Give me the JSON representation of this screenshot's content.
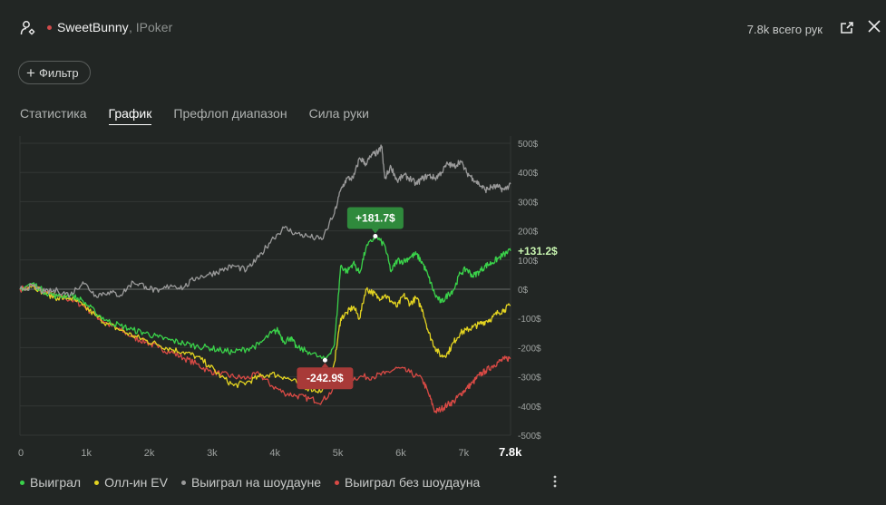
{
  "header": {
    "player_name": "SweetBunny",
    "site": ", IPoker",
    "hands_count": "7.8k всего рук",
    "status_color": "#d24b4b",
    "icons": [
      "user-settings-icon",
      "export-icon",
      "close-icon"
    ]
  },
  "filter": {
    "label": "Фильтр"
  },
  "tabs": [
    {
      "label": "Статистика",
      "active": false
    },
    {
      "label": "График",
      "active": true
    },
    {
      "label": "Префлоп диапазон",
      "active": false
    },
    {
      "label": "Сила руки",
      "active": false
    }
  ],
  "legend": [
    {
      "label": "Выиграл",
      "color": "#3ad24a"
    },
    {
      "label": "Олл-ин EV",
      "color": "#e3d321"
    },
    {
      "label": "Выиграл на шоудауне",
      "color": "#9a9a9a"
    },
    {
      "label": "Выиграл без шоудауна",
      "color": "#d94a45"
    }
  ],
  "chart_data": {
    "type": "line",
    "x_ticks": [
      "0",
      "1k",
      "2k",
      "3k",
      "4k",
      "5k",
      "6k",
      "7k",
      "7.8k"
    ],
    "y_ticks": [
      "500$",
      "400$",
      "300$",
      "200$",
      "100$",
      "0$",
      "-100$",
      "-200$",
      "-300$",
      "-400$",
      "-500$"
    ],
    "xlim": [
      0,
      7800
    ],
    "ylim": [
      -500,
      500
    ],
    "grid": true,
    "legend_position": "bottom-left",
    "annotations": [
      {
        "text": "+181.7$",
        "x": 5650,
        "y": 181.7,
        "color": "#2f8a3c"
      },
      {
        "text": "-242.9$",
        "x": 4850,
        "y": -242.9,
        "color": "#a83a38"
      }
    ],
    "end_label": {
      "text": "+131.2$",
      "color": "#c8f5b0"
    },
    "series": [
      {
        "name": "Выиграл",
        "color": "#3ad24a",
        "points": [
          [
            0,
            0
          ],
          [
            200,
            20
          ],
          [
            400,
            -10
          ],
          [
            600,
            -25
          ],
          [
            800,
            -20
          ],
          [
            1000,
            -40
          ],
          [
            1200,
            -80
          ],
          [
            1400,
            -110
          ],
          [
            1600,
            -125
          ],
          [
            1800,
            -140
          ],
          [
            2000,
            -150
          ],
          [
            2200,
            -165
          ],
          [
            2400,
            -175
          ],
          [
            2600,
            -185
          ],
          [
            2800,
            -195
          ],
          [
            3000,
            -200
          ],
          [
            3200,
            -210
          ],
          [
            3400,
            -215
          ],
          [
            3600,
            -205
          ],
          [
            3800,
            -190
          ],
          [
            4000,
            -150
          ],
          [
            4100,
            -140
          ],
          [
            4200,
            -180
          ],
          [
            4300,
            -165
          ],
          [
            4400,
            -200
          ],
          [
            4600,
            -215
          ],
          [
            4850,
            -242.9
          ],
          [
            5000,
            -190
          ],
          [
            5100,
            80
          ],
          [
            5200,
            60
          ],
          [
            5300,
            90
          ],
          [
            5400,
            55
          ],
          [
            5500,
            140
          ],
          [
            5650,
            181.7
          ],
          [
            5800,
            150
          ],
          [
            5900,
            60
          ],
          [
            6000,
            100
          ],
          [
            6100,
            95
          ],
          [
            6200,
            110
          ],
          [
            6300,
            120
          ],
          [
            6400,
            90
          ],
          [
            6500,
            40
          ],
          [
            6600,
            -20
          ],
          [
            6700,
            -45
          ],
          [
            6800,
            -20
          ],
          [
            6900,
            0
          ],
          [
            7000,
            55
          ],
          [
            7100,
            70
          ],
          [
            7200,
            45
          ],
          [
            7300,
            60
          ],
          [
            7400,
            80
          ],
          [
            7500,
            90
          ],
          [
            7600,
            105
          ],
          [
            7700,
            120
          ],
          [
            7800,
            131.2
          ]
        ]
      },
      {
        "name": "Олл-ин EV",
        "color": "#e3d321",
        "points": [
          [
            0,
            0
          ],
          [
            200,
            15
          ],
          [
            400,
            -15
          ],
          [
            600,
            -30
          ],
          [
            800,
            -30
          ],
          [
            1000,
            -55
          ],
          [
            1200,
            -90
          ],
          [
            1400,
            -120
          ],
          [
            1600,
            -140
          ],
          [
            1800,
            -160
          ],
          [
            2000,
            -175
          ],
          [
            2200,
            -190
          ],
          [
            2400,
            -205
          ],
          [
            2600,
            -215
          ],
          [
            2800,
            -230
          ],
          [
            3000,
            -260
          ],
          [
            3200,
            -300
          ],
          [
            3400,
            -330
          ],
          [
            3600,
            -320
          ],
          [
            3800,
            -300
          ],
          [
            4000,
            -290
          ],
          [
            4200,
            -300
          ],
          [
            4400,
            -320
          ],
          [
            4600,
            -340
          ],
          [
            4800,
            -350
          ],
          [
            5000,
            -250
          ],
          [
            5100,
            -100
          ],
          [
            5200,
            -80
          ],
          [
            5300,
            -60
          ],
          [
            5400,
            -100
          ],
          [
            5500,
            0
          ],
          [
            5600,
            -10
          ],
          [
            5700,
            -30
          ],
          [
            5800,
            -20
          ],
          [
            5900,
            -40
          ],
          [
            6000,
            -60
          ],
          [
            6100,
            -20
          ],
          [
            6200,
            -50
          ],
          [
            6300,
            -30
          ],
          [
            6400,
            -70
          ],
          [
            6500,
            -150
          ],
          [
            6600,
            -200
          ],
          [
            6700,
            -230
          ],
          [
            6800,
            -220
          ],
          [
            6900,
            -180
          ],
          [
            7000,
            -150
          ],
          [
            7100,
            -140
          ],
          [
            7200,
            -130
          ],
          [
            7300,
            -120
          ],
          [
            7400,
            -110
          ],
          [
            7500,
            -100
          ],
          [
            7600,
            -80
          ],
          [
            7700,
            -70
          ],
          [
            7800,
            -55
          ]
        ]
      },
      {
        "name": "Выиграл на шоудауне",
        "color": "#9a9a9a",
        "points": [
          [
            0,
            0
          ],
          [
            200,
            10
          ],
          [
            400,
            -10
          ],
          [
            600,
            -5
          ],
          [
            800,
            -20
          ],
          [
            1000,
            25
          ],
          [
            1200,
            -20
          ],
          [
            1400,
            -10
          ],
          [
            1600,
            -20
          ],
          [
            1800,
            25
          ],
          [
            2000,
            10
          ],
          [
            2200,
            -10
          ],
          [
            2400,
            15
          ],
          [
            2600,
            5
          ],
          [
            2800,
            40
          ],
          [
            3000,
            50
          ],
          [
            3200,
            65
          ],
          [
            3400,
            80
          ],
          [
            3600,
            65
          ],
          [
            3800,
            110
          ],
          [
            4000,
            170
          ],
          [
            4200,
            210
          ],
          [
            4400,
            190
          ],
          [
            4600,
            180
          ],
          [
            4800,
            170
          ],
          [
            5000,
            260
          ],
          [
            5100,
            340
          ],
          [
            5200,
            380
          ],
          [
            5300,
            380
          ],
          [
            5400,
            450
          ],
          [
            5500,
            430
          ],
          [
            5600,
            460
          ],
          [
            5700,
            470
          ],
          [
            5750,
            490
          ],
          [
            5800,
            380
          ],
          [
            5900,
            420
          ],
          [
            6000,
            370
          ],
          [
            6100,
            390
          ],
          [
            6200,
            380
          ],
          [
            6300,
            360
          ],
          [
            6400,
            380
          ],
          [
            6500,
            390
          ],
          [
            6600,
            380
          ],
          [
            6700,
            400
          ],
          [
            6800,
            430
          ],
          [
            6900,
            420
          ],
          [
            7000,
            440
          ],
          [
            7100,
            400
          ],
          [
            7200,
            380
          ],
          [
            7300,
            360
          ],
          [
            7400,
            340
          ],
          [
            7500,
            350
          ],
          [
            7600,
            350
          ],
          [
            7700,
            340
          ],
          [
            7800,
            360
          ]
        ]
      },
      {
        "name": "Выиграл без шоудауна",
        "color": "#d94a45",
        "points": [
          [
            0,
            0
          ],
          [
            200,
            10
          ],
          [
            400,
            -10
          ],
          [
            600,
            -25
          ],
          [
            800,
            -35
          ],
          [
            1000,
            -55
          ],
          [
            1200,
            -90
          ],
          [
            1400,
            -120
          ],
          [
            1600,
            -140
          ],
          [
            1800,
            -165
          ],
          [
            2000,
            -180
          ],
          [
            2200,
            -200
          ],
          [
            2400,
            -215
          ],
          [
            2600,
            -235
          ],
          [
            2800,
            -255
          ],
          [
            3000,
            -280
          ],
          [
            3200,
            -290
          ],
          [
            3400,
            -300
          ],
          [
            3600,
            -305
          ],
          [
            3800,
            -290
          ],
          [
            4000,
            -330
          ],
          [
            4200,
            -355
          ],
          [
            4400,
            -365
          ],
          [
            4600,
            -375
          ],
          [
            4800,
            -385
          ],
          [
            5000,
            -340
          ],
          [
            5200,
            -310
          ],
          [
            5400,
            -300
          ],
          [
            5600,
            -300
          ],
          [
            5800,
            -290
          ],
          [
            6000,
            -270
          ],
          [
            6200,
            -285
          ],
          [
            6400,
            -310
          ],
          [
            6500,
            -360
          ],
          [
            6600,
            -420
          ],
          [
            6700,
            -410
          ],
          [
            6800,
            -395
          ],
          [
            6900,
            -385
          ],
          [
            7000,
            -360
          ],
          [
            7100,
            -340
          ],
          [
            7200,
            -320
          ],
          [
            7300,
            -295
          ],
          [
            7400,
            -280
          ],
          [
            7500,
            -265
          ],
          [
            7600,
            -250
          ],
          [
            7700,
            -240
          ],
          [
            7800,
            -235
          ]
        ]
      }
    ]
  }
}
